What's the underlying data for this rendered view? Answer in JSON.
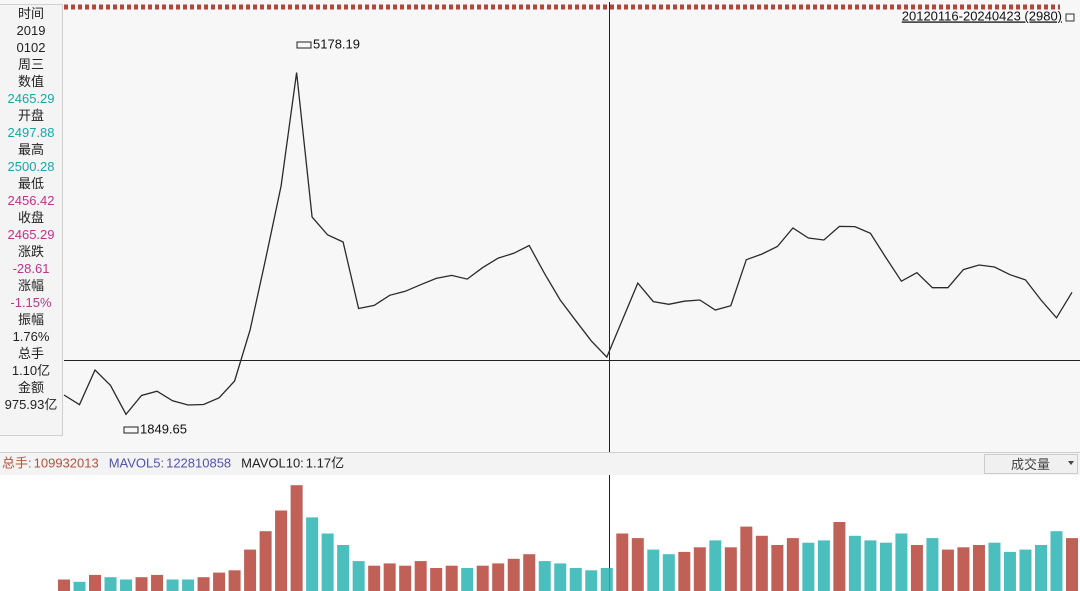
{
  "range_label": "20120116-20240423 (2980)",
  "info_panel": [
    {
      "label": "时间",
      "lines": [
        "2019",
        "0102",
        "周三"
      ],
      "color": "#222222"
    },
    {
      "label": "数值",
      "lines": [
        "2465.29"
      ],
      "color": "#1aa6a6"
    },
    {
      "label": "开盘",
      "lines": [
        "2497.88"
      ],
      "color": "#1aa6a6"
    },
    {
      "label": "最高",
      "lines": [
        "2500.28"
      ],
      "color": "#1aa6a6"
    },
    {
      "label": "最低",
      "lines": [
        "2456.42"
      ],
      "color": "#c0338a"
    },
    {
      "label": "收盘",
      "lines": [
        "2465.29"
      ],
      "color": "#c0338a"
    },
    {
      "label": "涨跌",
      "lines": [
        "-28.61"
      ],
      "color": "#c0338a"
    },
    {
      "label": "涨幅",
      "lines": [
        "-1.15%"
      ],
      "color": "#c0338a"
    },
    {
      "label": "振幅",
      "lines": [
        "1.76%"
      ],
      "color": "#222222"
    },
    {
      "label": "总手",
      "lines": [
        "1.10亿"
      ],
      "color": "#222222"
    },
    {
      "label": "金额",
      "lines": [
        "975.93亿"
      ],
      "color": "#222222"
    }
  ],
  "volume_header": [
    {
      "label": "总手:",
      "value": 109932013,
      "color": "#b5523b"
    },
    {
      "label": "MAVOL5:",
      "value": 122810858,
      "color": "#5252b0"
    },
    {
      "label": "MAVOL10:",
      "value": "1.17亿",
      "color": "#222222"
    }
  ],
  "indicator_select": "成交量",
  "chart_data": [
    {
      "type": "line",
      "color": "#2a2a2a",
      "high_label": 5178.19,
      "low_label": 1849.65,
      "values": [
        2152,
        2068,
        2368,
        2235,
        1985,
        2148,
        2185,
        2102,
        2066,
        2070,
        2128,
        2273,
        2715,
        3327,
        3960,
        4940,
        3690,
        3536,
        3475,
        2900,
        2927,
        3014,
        3049,
        3106,
        3160,
        3186,
        3154,
        3254,
        3336,
        3377,
        3445,
        3200,
        2974,
        2795,
        2620,
        2480,
        2800,
        3120,
        2960,
        2936,
        2963,
        2974,
        2887,
        2924,
        3322,
        3370,
        3436,
        3596,
        3510,
        3492,
        3610,
        3608,
        3550,
        3340,
        3136,
        3210,
        3080,
        3080,
        3236,
        3276,
        3259,
        3192,
        3147,
        2974,
        2820,
        3040
      ]
    },
    {
      "type": "bar",
      "up_color": "#b5443a",
      "down_color": "#2bb3b3",
      "values": [
        0.5,
        0.4,
        0.7,
        0.6,
        0.5,
        0.6,
        0.7,
        0.5,
        0.5,
        0.6,
        0.8,
        0.9,
        1.8,
        2.6,
        3.5,
        4.6,
        3.2,
        2.5,
        2.0,
        1.3,
        1.1,
        1.2,
        1.1,
        1.3,
        1.0,
        1.1,
        1.0,
        1.1,
        1.2,
        1.4,
        1.6,
        1.3,
        1.2,
        1.0,
        0.9,
        1.0,
        2.5,
        2.3,
        1.8,
        1.6,
        1.7,
        1.9,
        2.2,
        1.9,
        2.8,
        2.4,
        2.0,
        2.3,
        2.1,
        2.2,
        3.0,
        2.4,
        2.2,
        2.1,
        2.5,
        2.0,
        2.3,
        1.8,
        1.9,
        2.0,
        2.1,
        1.7,
        1.8,
        2.0,
        2.6,
        2.3
      ]
    }
  ]
}
